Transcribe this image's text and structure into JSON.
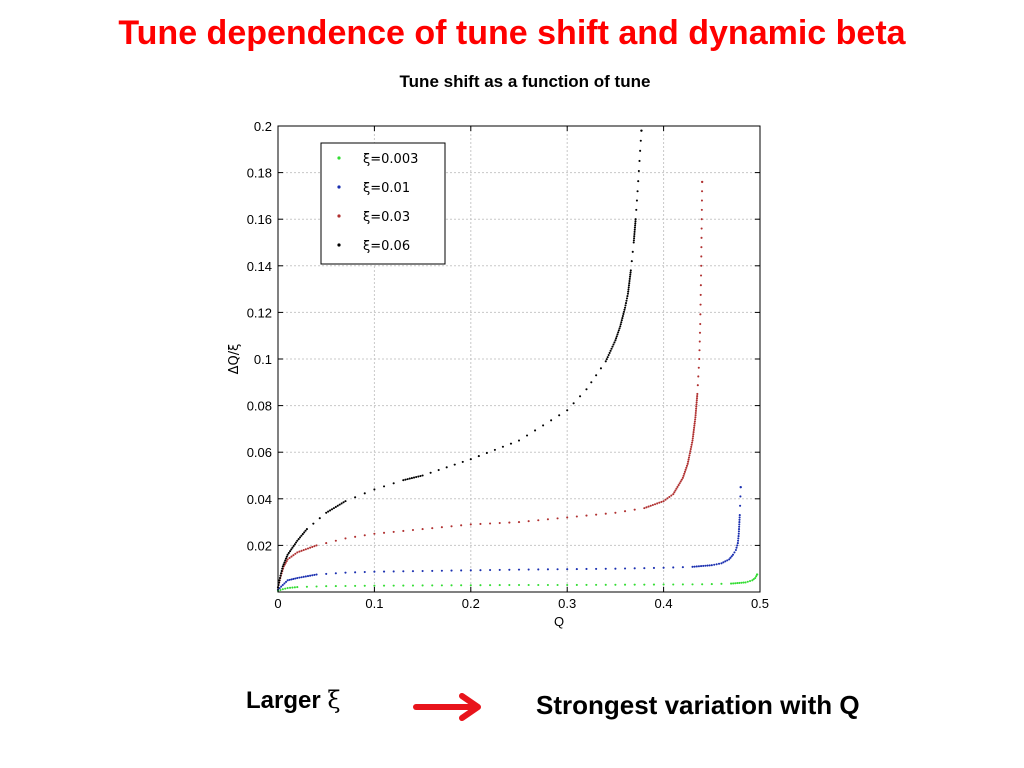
{
  "slide": {
    "title": "Tune dependence of tune shift and dynamic beta",
    "subtitle": "Tune shift as a function of tune",
    "caption_left": "Larger",
    "caption_symbol": "ξ",
    "caption_right": "Strongest variation with Q",
    "arrow_icon": "right-arrow-icon",
    "arrow_color": "#e8141b"
  },
  "chart_data": {
    "type": "scatter",
    "title": "",
    "xlabel": "Q",
    "ylabel": "ΔQ/ξ",
    "xlim": [
      0,
      0.5
    ],
    "ylim": [
      0,
      0.2
    ],
    "xticks": [
      0,
      0.1,
      0.2,
      0.3,
      0.4,
      0.5
    ],
    "xtick_labels": [
      "0",
      "0.1",
      "0.2",
      "0.3",
      "0.4",
      "0.5"
    ],
    "yticks": [
      0.02,
      0.04,
      0.06,
      0.08,
      0.1,
      0.12,
      0.14,
      0.16,
      0.18,
      0.2
    ],
    "ytick_labels": [
      "0.02",
      "0.04",
      "0.06",
      "0.08",
      "0.1",
      "0.12",
      "0.14",
      "0.16",
      "0.18",
      "0.2"
    ],
    "grid": true,
    "legend_position": "top-left",
    "series": [
      {
        "name": "ξ=0.003",
        "color": "#33dd33",
        "x": [
          0,
          0.005,
          0.01,
          0.02,
          0.05,
          0.1,
          0.15,
          0.2,
          0.25,
          0.3,
          0.35,
          0.4,
          0.44,
          0.47,
          0.485,
          0.492,
          0.495,
          0.497
        ],
        "y": [
          0.0005,
          0.0012,
          0.0017,
          0.0021,
          0.0025,
          0.0027,
          0.0028,
          0.0029,
          0.003,
          0.003,
          0.0031,
          0.0032,
          0.0033,
          0.0036,
          0.0041,
          0.005,
          0.006,
          0.0075
        ]
      },
      {
        "name": "ξ=0.01",
        "color": "#1a2fb0",
        "x": [
          0,
          0.005,
          0.01,
          0.02,
          0.04,
          0.07,
          0.1,
          0.15,
          0.2,
          0.25,
          0.3,
          0.35,
          0.4,
          0.43,
          0.45,
          0.46,
          0.468,
          0.472,
          0.475,
          0.477,
          0.478,
          0.479,
          0.48
        ],
        "y": [
          0.001,
          0.003,
          0.005,
          0.006,
          0.0075,
          0.0083,
          0.0087,
          0.009,
          0.0093,
          0.0096,
          0.0098,
          0.01,
          0.0104,
          0.0108,
          0.0115,
          0.0123,
          0.014,
          0.016,
          0.018,
          0.021,
          0.025,
          0.033,
          0.045
        ]
      },
      {
        "name": "ξ=0.03",
        "color": "#b03030",
        "x": [
          0,
          0.003,
          0.006,
          0.01,
          0.02,
          0.04,
          0.07,
          0.1,
          0.15,
          0.2,
          0.25,
          0.3,
          0.35,
          0.38,
          0.4,
          0.41,
          0.42,
          0.425,
          0.43,
          0.433,
          0.435,
          0.437,
          0.438,
          0.439,
          0.44
        ],
        "y": [
          0.002,
          0.007,
          0.011,
          0.014,
          0.017,
          0.02,
          0.023,
          0.025,
          0.027,
          0.029,
          0.03,
          0.032,
          0.034,
          0.036,
          0.039,
          0.042,
          0.049,
          0.055,
          0.065,
          0.075,
          0.085,
          0.1,
          0.115,
          0.14,
          0.176
        ]
      },
      {
        "name": "ξ=0.06",
        "color": "#000000",
        "x": [
          0,
          0.002,
          0.005,
          0.01,
          0.02,
          0.03,
          0.05,
          0.07,
          0.1,
          0.13,
          0.15,
          0.2,
          0.25,
          0.3,
          0.32,
          0.34,
          0.35,
          0.355,
          0.36,
          0.363,
          0.366,
          0.369,
          0.371,
          0.373,
          0.375,
          0.377
        ],
        "y": [
          0.002,
          0.006,
          0.011,
          0.016,
          0.022,
          0.027,
          0.034,
          0.039,
          0.044,
          0.048,
          0.05,
          0.057,
          0.065,
          0.078,
          0.087,
          0.099,
          0.108,
          0.114,
          0.122,
          0.128,
          0.138,
          0.15,
          0.16,
          0.172,
          0.185,
          0.198
        ]
      }
    ]
  }
}
